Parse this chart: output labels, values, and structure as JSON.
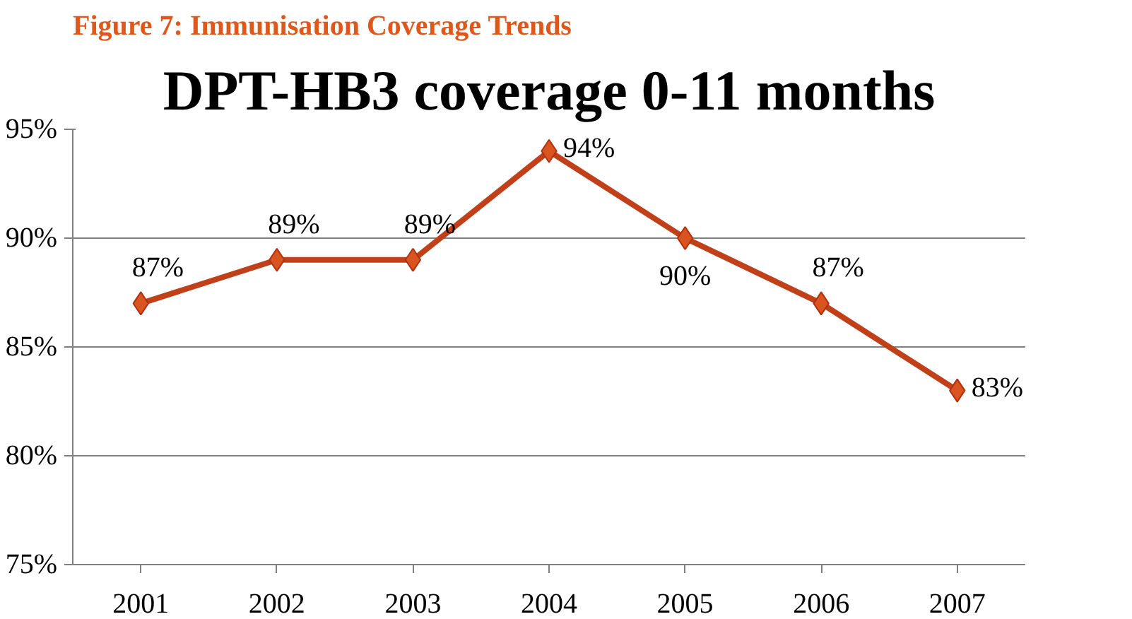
{
  "chart_data": {
    "type": "line",
    "title": "DPT-HB3 coverage 0-11 months",
    "annotations": [
      "Figure 7: Immunisation Coverage Trends"
    ],
    "categories": [
      "2001",
      "2002",
      "2003",
      "2004",
      "2005",
      "2006",
      "2007"
    ],
    "series": [
      {
        "color": "#c0401a",
        "values": [
          87,
          89,
          89,
          94,
          90,
          87,
          83
        ]
      }
    ],
    "value_labels": [
      "87%",
      "89%",
      "89%",
      "94%",
      "90%",
      "87%",
      "83%"
    ],
    "ylim": [
      75,
      95
    ],
    "yticks": [
      {
        "value": 75,
        "label": "75%"
      },
      {
        "value": 80,
        "label": "80%"
      },
      {
        "value": 85,
        "label": "85%"
      },
      {
        "value": 90,
        "label": "90%"
      },
      {
        "value": 95,
        "label": "95%"
      }
    ],
    "grid": "y",
    "marker": "diamond"
  }
}
